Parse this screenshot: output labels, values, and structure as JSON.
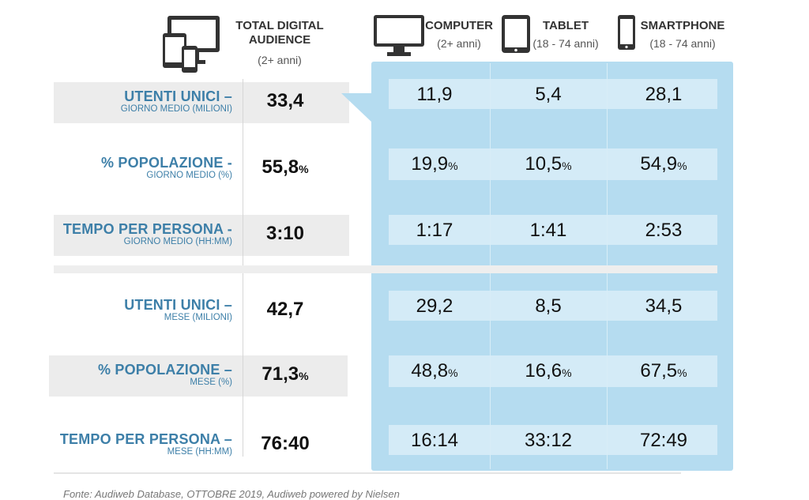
{
  "headers": {
    "total": {
      "title_line1": "TOTAL DIGITAL",
      "title_line2": "AUDIENCE",
      "sub": "(2+ anni)"
    },
    "computer": {
      "title": "COMPUTER",
      "sub": "(2+ anni)"
    },
    "tablet": {
      "title": "TABLET",
      "sub": "(18 - 74 anni)"
    },
    "smartphone": {
      "title": "SMARTPHONE",
      "sub": "(18 - 74 anni)"
    }
  },
  "rows": [
    {
      "main": "UTENTI UNICI –",
      "sub": "GIORNO MEDIO (MILIONI)",
      "total": "33,4",
      "computer": "11,9",
      "tablet": "5,4",
      "smartphone": "28,1",
      "pct": false
    },
    {
      "main": "% POPOLAZIONE -",
      "sub": "GIORNO MEDIO (%)",
      "total": "55,8",
      "computer": "19,9",
      "tablet": "10,5",
      "smartphone": "54,9",
      "pct": true
    },
    {
      "main": "TEMPO PER PERSONA -",
      "sub": "GIORNO MEDIO (HH:MM)",
      "total": "3:10",
      "computer": "1:17",
      "tablet": "1:41",
      "smartphone": "2:53",
      "pct": false
    },
    {
      "main": "UTENTI UNICI –",
      "sub": "MESE (MILIONI)",
      "total": "42,7",
      "computer": "29,2",
      "tablet": "8,5",
      "smartphone": "34,5",
      "pct": false
    },
    {
      "main": "% POPOLAZIONE –",
      "sub": "MESE (%)",
      "total": "71,3",
      "computer": "48,8",
      "tablet": "16,6",
      "smartphone": "67,5",
      "pct": true
    },
    {
      "main": "TEMPO PER PERSONA –",
      "sub": "MESE (HH:MM)",
      "total": "76:40",
      "computer": "16:14",
      "tablet": "33:12",
      "smartphone": "72:49",
      "pct": false
    }
  ],
  "pct_symbol": "%",
  "footer": "Fonte: Audiweb Database, OTTOBRE 2019, Audiweb powered by Nielsen",
  "colors": {
    "label_blue": "#3d7fa8",
    "panel_blue": "#b5dcf0",
    "cell_blue": "#d4ebf7",
    "row_grey": "#ececec"
  },
  "icons": [
    "multi-device-icon",
    "computer-monitor-icon",
    "tablet-icon",
    "smartphone-icon"
  ],
  "chart_data": {
    "type": "table",
    "columns": [
      "TOTAL DIGITAL AUDIENCE",
      "COMPUTER",
      "TABLET",
      "SMARTPHONE"
    ],
    "rows": [
      {
        "label": "UTENTI UNICI – GIORNO MEDIO (MILIONI)",
        "values": [
          33.4,
          11.9,
          5.4,
          28.1
        ]
      },
      {
        "label": "% POPOLAZIONE - GIORNO MEDIO (%)",
        "values": [
          55.8,
          19.9,
          10.5,
          54.9
        ]
      },
      {
        "label": "TEMPO PER PERSONA - GIORNO MEDIO (HH:MM)",
        "values": [
          "3:10",
          "1:17",
          "1:41",
          "2:53"
        ]
      },
      {
        "label": "UTENTI UNICI – MESE (MILIONI)",
        "values": [
          42.7,
          29.2,
          8.5,
          34.5
        ]
      },
      {
        "label": "% POPOLAZIONE – MESE (%)",
        "values": [
          71.3,
          48.8,
          16.6,
          67.5
        ]
      },
      {
        "label": "TEMPO PER PERSONA – MESE (HH:MM)",
        "values": [
          "76:40",
          "16:14",
          "33:12",
          "72:49"
        ]
      }
    ]
  }
}
